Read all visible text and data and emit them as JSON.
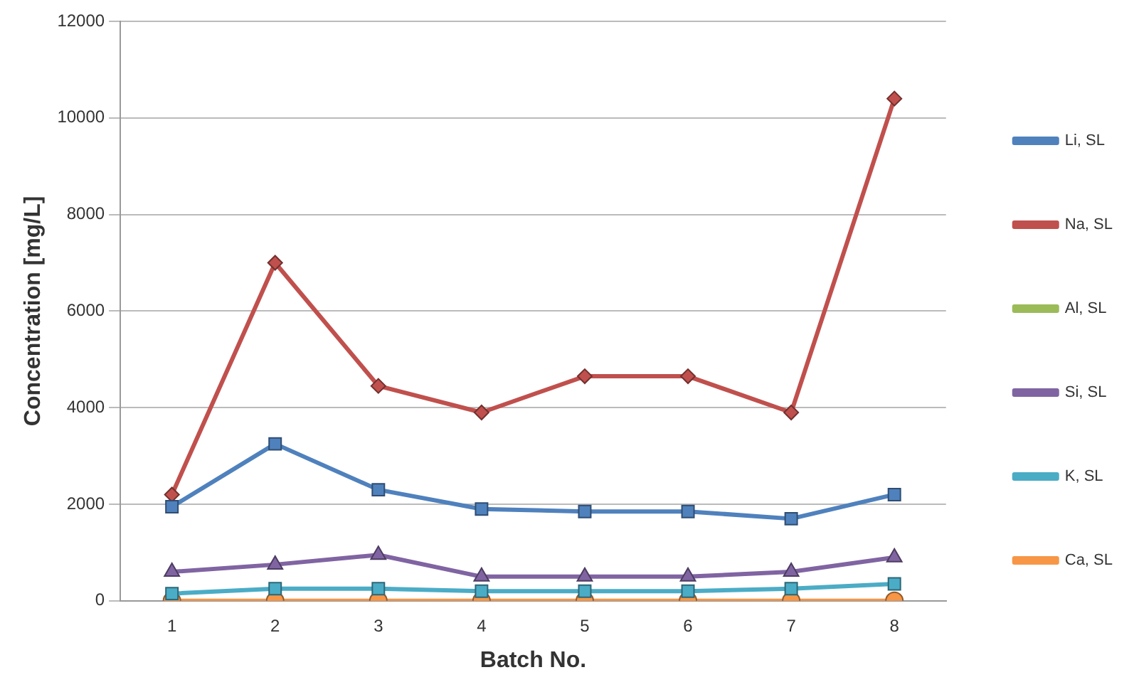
{
  "chart_data": {
    "type": "line",
    "xlabel": "Batch No.",
    "ylabel": "Concentration [mg/L]",
    "categories": [
      "1",
      "2",
      "3",
      "4",
      "5",
      "6",
      "7",
      "8"
    ],
    "series": [
      {
        "name": "Li, SL",
        "color": "#4f81bd",
        "marker": "square",
        "values": [
          1950,
          3250,
          2300,
          1900,
          1850,
          1850,
          1700,
          2200
        ]
      },
      {
        "name": "Na, SL",
        "color": "#c0504d",
        "marker": "diamond",
        "values": [
          2200,
          7000,
          4450,
          3900,
          4650,
          4650,
          3900,
          10400
        ]
      },
      {
        "name": "Al, SL",
        "color": "#9bbb59",
        "marker": "square",
        "values": [
          null,
          null,
          null,
          null,
          null,
          null,
          null,
          null
        ]
      },
      {
        "name": "Si, SL",
        "color": "#8064a2",
        "marker": "triangle",
        "values": [
          600,
          750,
          950,
          500,
          500,
          500,
          600,
          900
        ]
      },
      {
        "name": "K, SL",
        "color": "#4bacc6",
        "marker": "square",
        "values": [
          150,
          250,
          250,
          200,
          200,
          200,
          250,
          350
        ]
      },
      {
        "name": "Ca, SL",
        "color": "#f79646",
        "marker": "circle",
        "values": [
          0,
          0,
          0,
          0,
          0,
          0,
          0,
          0
        ]
      }
    ],
    "ylim": [
      0,
      12000
    ],
    "yticks": [
      0,
      2000,
      4000,
      6000,
      8000,
      10000,
      12000
    ],
    "grid": "y",
    "legend": "right",
    "line_style": "solid"
  }
}
